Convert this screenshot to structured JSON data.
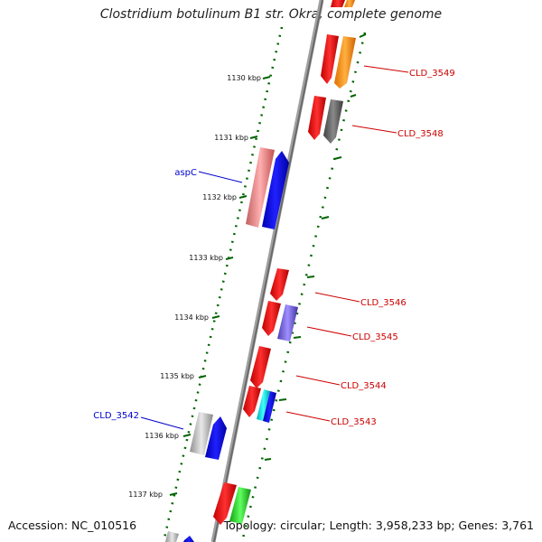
{
  "title": "Clostridium botulinum B1 str. Okra, complete genome",
  "footer": {
    "accession": "Accession: NC_010516",
    "summary": "Topology: circular; Length: 3,958,233 bp; Genes: 3,761"
  },
  "colors": {
    "backbone": "#808080",
    "ticks": "#006400",
    "label_red": "#cc0000",
    "label_blue": "#0000cc"
  },
  "ticks": [
    "1130 kbp",
    "1131 kbp",
    "1132 kbp",
    "1133 kbp",
    "1134 kbp",
    "1135 kbp",
    "1136 kbp",
    "1137 kbp"
  ],
  "gene_labels": [
    {
      "name": "CLD_3549",
      "color": "red"
    },
    {
      "name": "CLD_3548",
      "color": "red"
    },
    {
      "name": "aspC",
      "color": "blue"
    },
    {
      "name": "CLD_3546",
      "color": "red"
    },
    {
      "name": "CLD_3545",
      "color": "red"
    },
    {
      "name": "CLD_3544",
      "color": "red"
    },
    {
      "name": "CLD_3543",
      "color": "red"
    },
    {
      "name": "CLD_3542",
      "color": "blue"
    }
  ]
}
